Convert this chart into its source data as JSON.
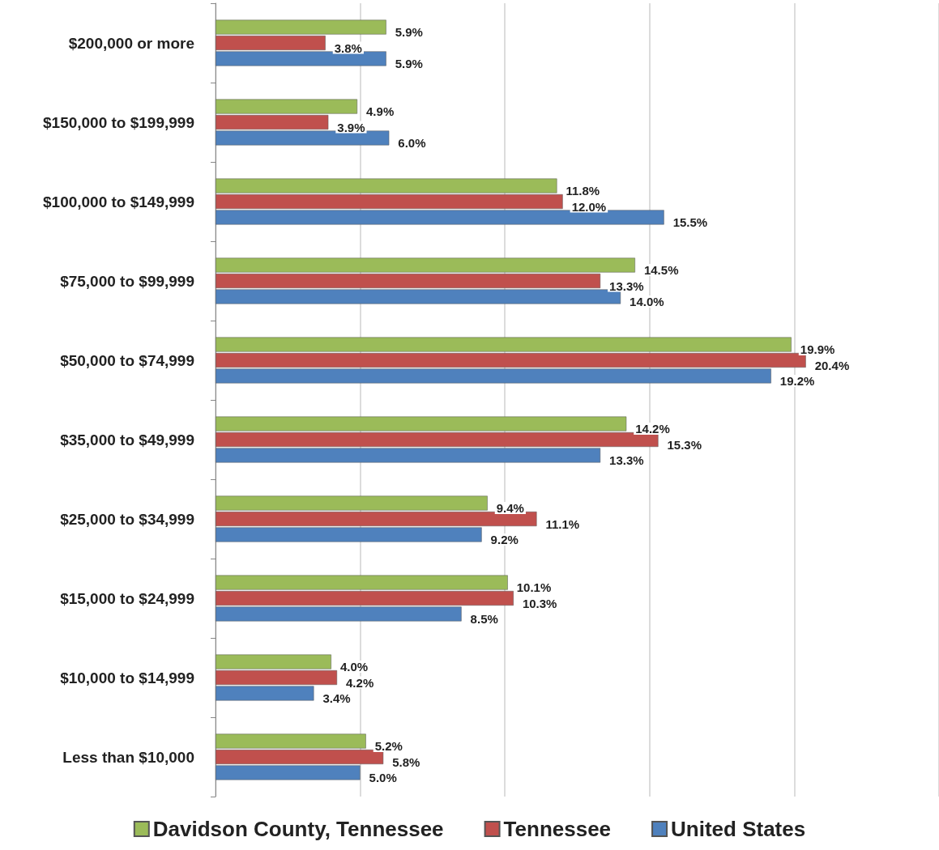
{
  "chart_data": {
    "type": "bar",
    "orientation": "horizontal",
    "categories": [
      "$200,000 or more",
      "$150,000 to $199,999",
      "$100,000 to $149,999",
      "$75,000 to $99,999",
      "$50,000 to $74,999",
      "$35,000 to $49,999",
      "$25,000 to $34,999",
      "$15,000 to $24,999",
      "$10,000 to $14,999",
      "Less than $10,000"
    ],
    "series": [
      {
        "name": "Davidson County, Tennessee",
        "color": "#9bbb59",
        "values": [
          5.9,
          4.9,
          11.8,
          14.5,
          19.9,
          14.2,
          9.4,
          10.1,
          4.0,
          5.2
        ],
        "value_labels": [
          "5.9%",
          "4.9%",
          "11.8%",
          "14.5%",
          "19.9%",
          "14.2%",
          "9.4%",
          "10.1%",
          "4.0%",
          "5.2%"
        ]
      },
      {
        "name": "Tennessee",
        "color": "#c0504d",
        "values": [
          3.8,
          3.9,
          12.0,
          13.3,
          20.4,
          15.3,
          11.1,
          10.3,
          4.2,
          5.8
        ],
        "value_labels": [
          "3.8%",
          "3.9%",
          "12.0%",
          "13.3%",
          "20.4%",
          "15.3%",
          "11.1%",
          "10.3%",
          "4.2%",
          "5.8%"
        ]
      },
      {
        "name": "United States",
        "color": "#4f81bd",
        "values": [
          5.9,
          6.0,
          15.5,
          14.0,
          19.2,
          13.3,
          9.2,
          8.5,
          3.4,
          5.0
        ],
        "value_labels": [
          "5.9%",
          "6.0%",
          "15.5%",
          "14.0%",
          "19.2%",
          "13.3%",
          "9.2%",
          "8.5%",
          "3.4%",
          "5.0%"
        ]
      }
    ],
    "xlim": [
      0,
      25
    ],
    "xticks": [
      {
        "value": 0,
        "label": null
      },
      {
        "value": 5,
        "label": null
      },
      {
        "value": 10,
        "label": null
      },
      {
        "value": 15,
        "label": null
      },
      {
        "value": 20,
        "label": null
      },
      {
        "value": 25,
        "label": null
      }
    ],
    "tick_labels": "y",
    "grid": "x",
    "legend": "bottom"
  }
}
